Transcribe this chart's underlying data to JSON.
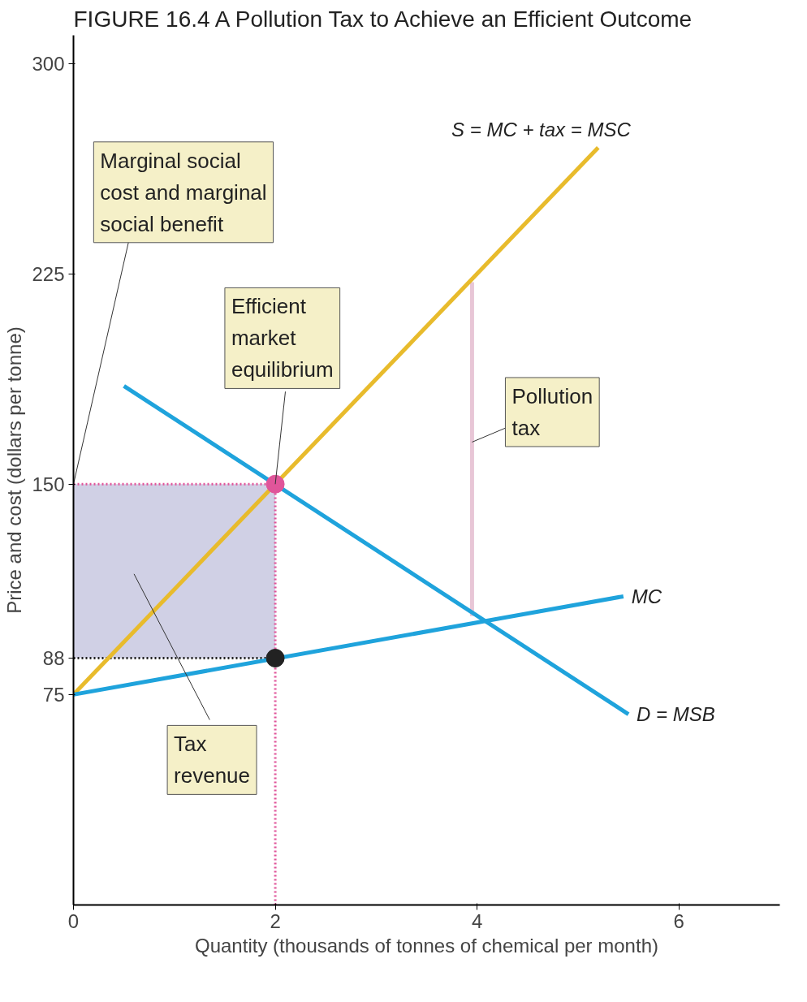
{
  "chart_data": {
    "type": "line",
    "title": "FIGURE 16.4  A Pollution Tax to Achieve an Efficient Outcome",
    "xlabel": "Quantity (thousands of tonnes of chemical per month)",
    "ylabel": "Price and cost (dollars per tonne)",
    "xlim": [
      0,
      7
    ],
    "ylim": [
      0,
      310
    ],
    "xticks": [
      {
        "value": 0,
        "label": "0"
      },
      2,
      4,
      6
    ],
    "yticks": [
      75,
      88,
      150,
      225,
      300
    ],
    "grid": false,
    "legend": false,
    "series": [
      {
        "color": "#e0559a",
        "line_style": "dotted",
        "x": [
          0,
          2
        ],
        "values": [
          150,
          150
        ],
        "lower": [
          88,
          88
        ],
        "upper": [
          150,
          150
        ]
      },
      {
        "color": "#222222",
        "line_style": "dotted",
        "x": [
          0,
          2
        ],
        "values": [
          88,
          88
        ]
      },
      {
        "color": "#e0559a",
        "line_style": "dotted",
        "x": [
          2,
          2
        ],
        "values": [
          0,
          150
        ]
      },
      {
        "color": "#e8c6d6",
        "line_style": "solid",
        "x": [
          3.95,
          3.95
        ],
        "values": [
          103,
          222
        ]
      },
      {
        "name": "S = MC + tax = MSC",
        "color": "#e8bb2c",
        "line_style": "solid",
        "x": [
          0,
          5.2
        ],
        "values": [
          75,
          270
        ]
      },
      {
        "name": "MC",
        "color": "#1fa3dc",
        "line_style": "solid",
        "x": [
          0,
          5.45
        ],
        "values": [
          75,
          110
        ]
      },
      {
        "name": "D = MSB",
        "color": "#1fa3dc",
        "line_style": "solid",
        "x": [
          0.5,
          5.5
        ],
        "values": [
          185,
          68
        ]
      },
      {
        "type": "scatter",
        "marker": "circle",
        "color": "#e0559a",
        "x": [
          2
        ],
        "values": [
          150
        ]
      },
      {
        "type": "scatter",
        "marker": "circle",
        "color": "#222222",
        "x": [
          2
        ],
        "values": [
          88
        ]
      }
    ],
    "annotations": [
      {
        "text": "Marginal social cost and marginal social benefit",
        "x": 0,
        "y": 150
      },
      {
        "text": "Efficient market equilibrium",
        "x": 2,
        "y": 150
      },
      {
        "text": "Pollution tax",
        "x": 3.95,
        "y": 165
      },
      "Tax revenue"
    ]
  }
}
